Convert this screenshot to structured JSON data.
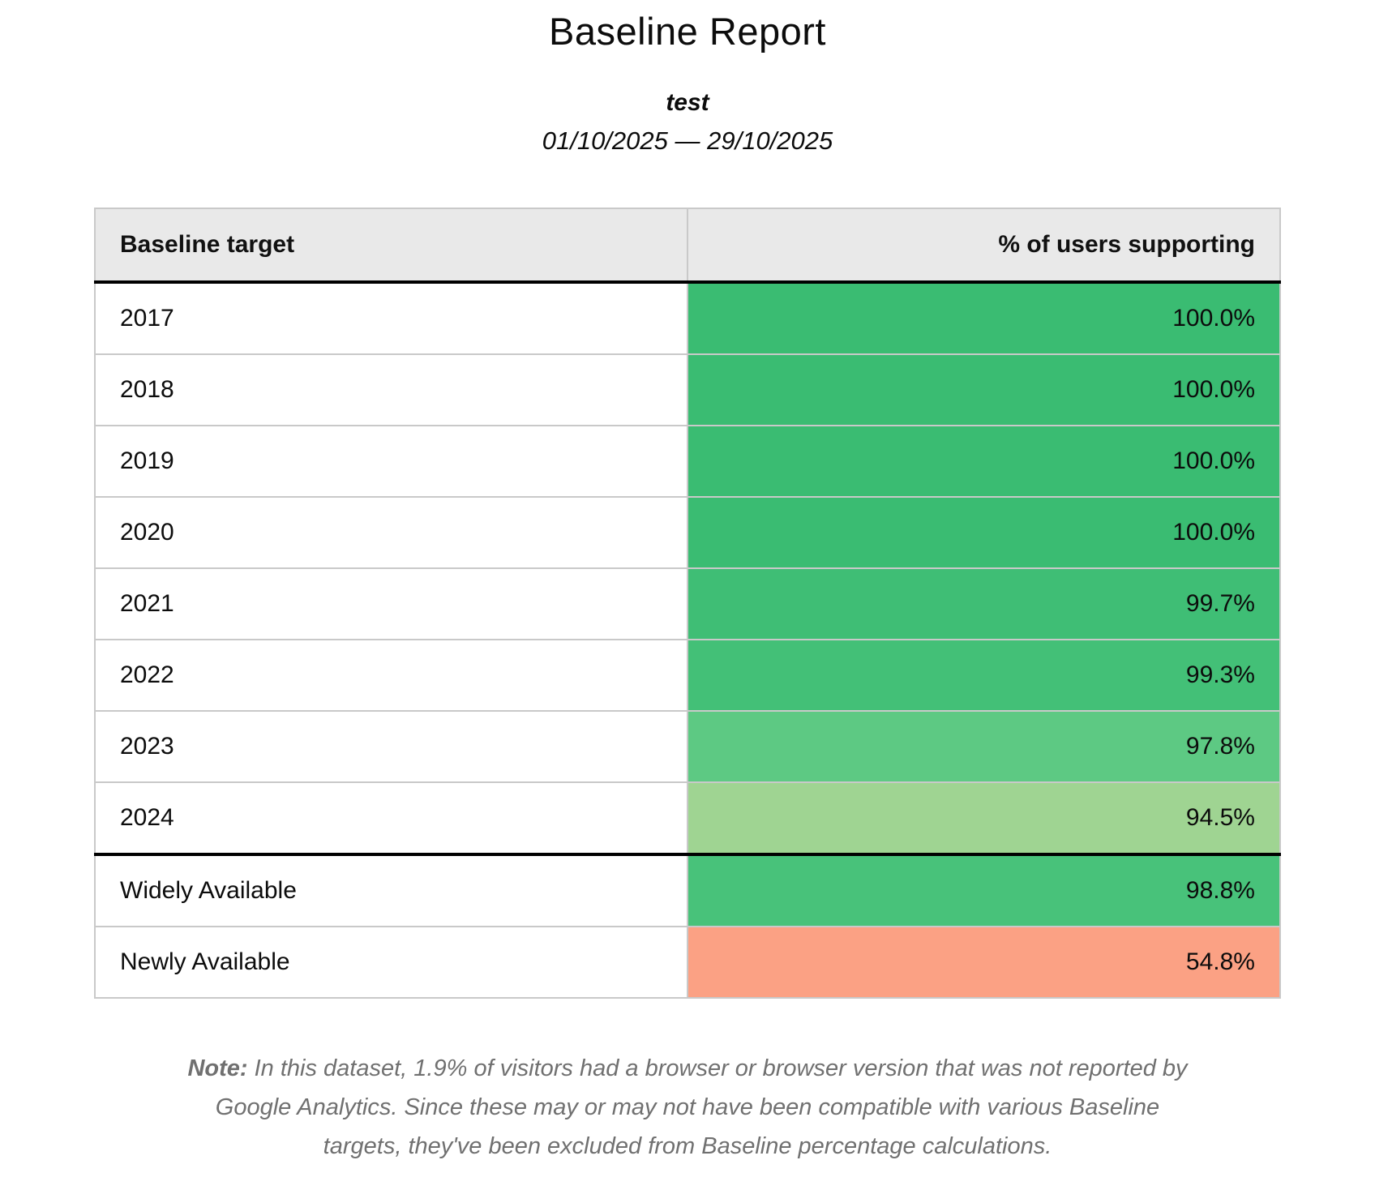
{
  "report": {
    "title": "Baseline Report",
    "subtitle": "test",
    "date_range": "01/10/2025 — 29/10/2025"
  },
  "table": {
    "columns": [
      {
        "label": "Baseline target"
      },
      {
        "label": "% of users supporting"
      }
    ],
    "rows": [
      {
        "target": "2017",
        "value": "100.0%",
        "color": "#3abc72"
      },
      {
        "target": "2018",
        "value": "100.0%",
        "color": "#3abc72"
      },
      {
        "target": "2019",
        "value": "100.0%",
        "color": "#3abc72"
      },
      {
        "target": "2020",
        "value": "100.0%",
        "color": "#3abc72"
      },
      {
        "target": "2021",
        "value": "99.7%",
        "color": "#3fbe75"
      },
      {
        "target": "2022",
        "value": "99.3%",
        "color": "#43c077"
      },
      {
        "target": "2023",
        "value": "97.8%",
        "color": "#5dc983"
      },
      {
        "target": "2024",
        "value": "94.5%",
        "color": "#9fd492"
      },
      {
        "target": "Widely Available",
        "value": "98.8%",
        "color": "#48c27a"
      },
      {
        "target": "Newly Available",
        "value": "54.8%",
        "color": "#fba184"
      }
    ]
  },
  "note": {
    "label": "Note:",
    "text": "In this dataset, 1.9% of visitors had a browser or browser version that was not reported by Google Analytics. Since these may or may not have been compatible with various Baseline targets, they've been excluded from Baseline percentage calculations."
  },
  "palette": {
    "header_background": "#e9e9e9",
    "grid_line": "#c9c9c9",
    "section_rule": "#000000",
    "note_text": "#707070",
    "green_full": "#3abc72",
    "green_light": "#9fd492",
    "salmon_low": "#fba184"
  }
}
